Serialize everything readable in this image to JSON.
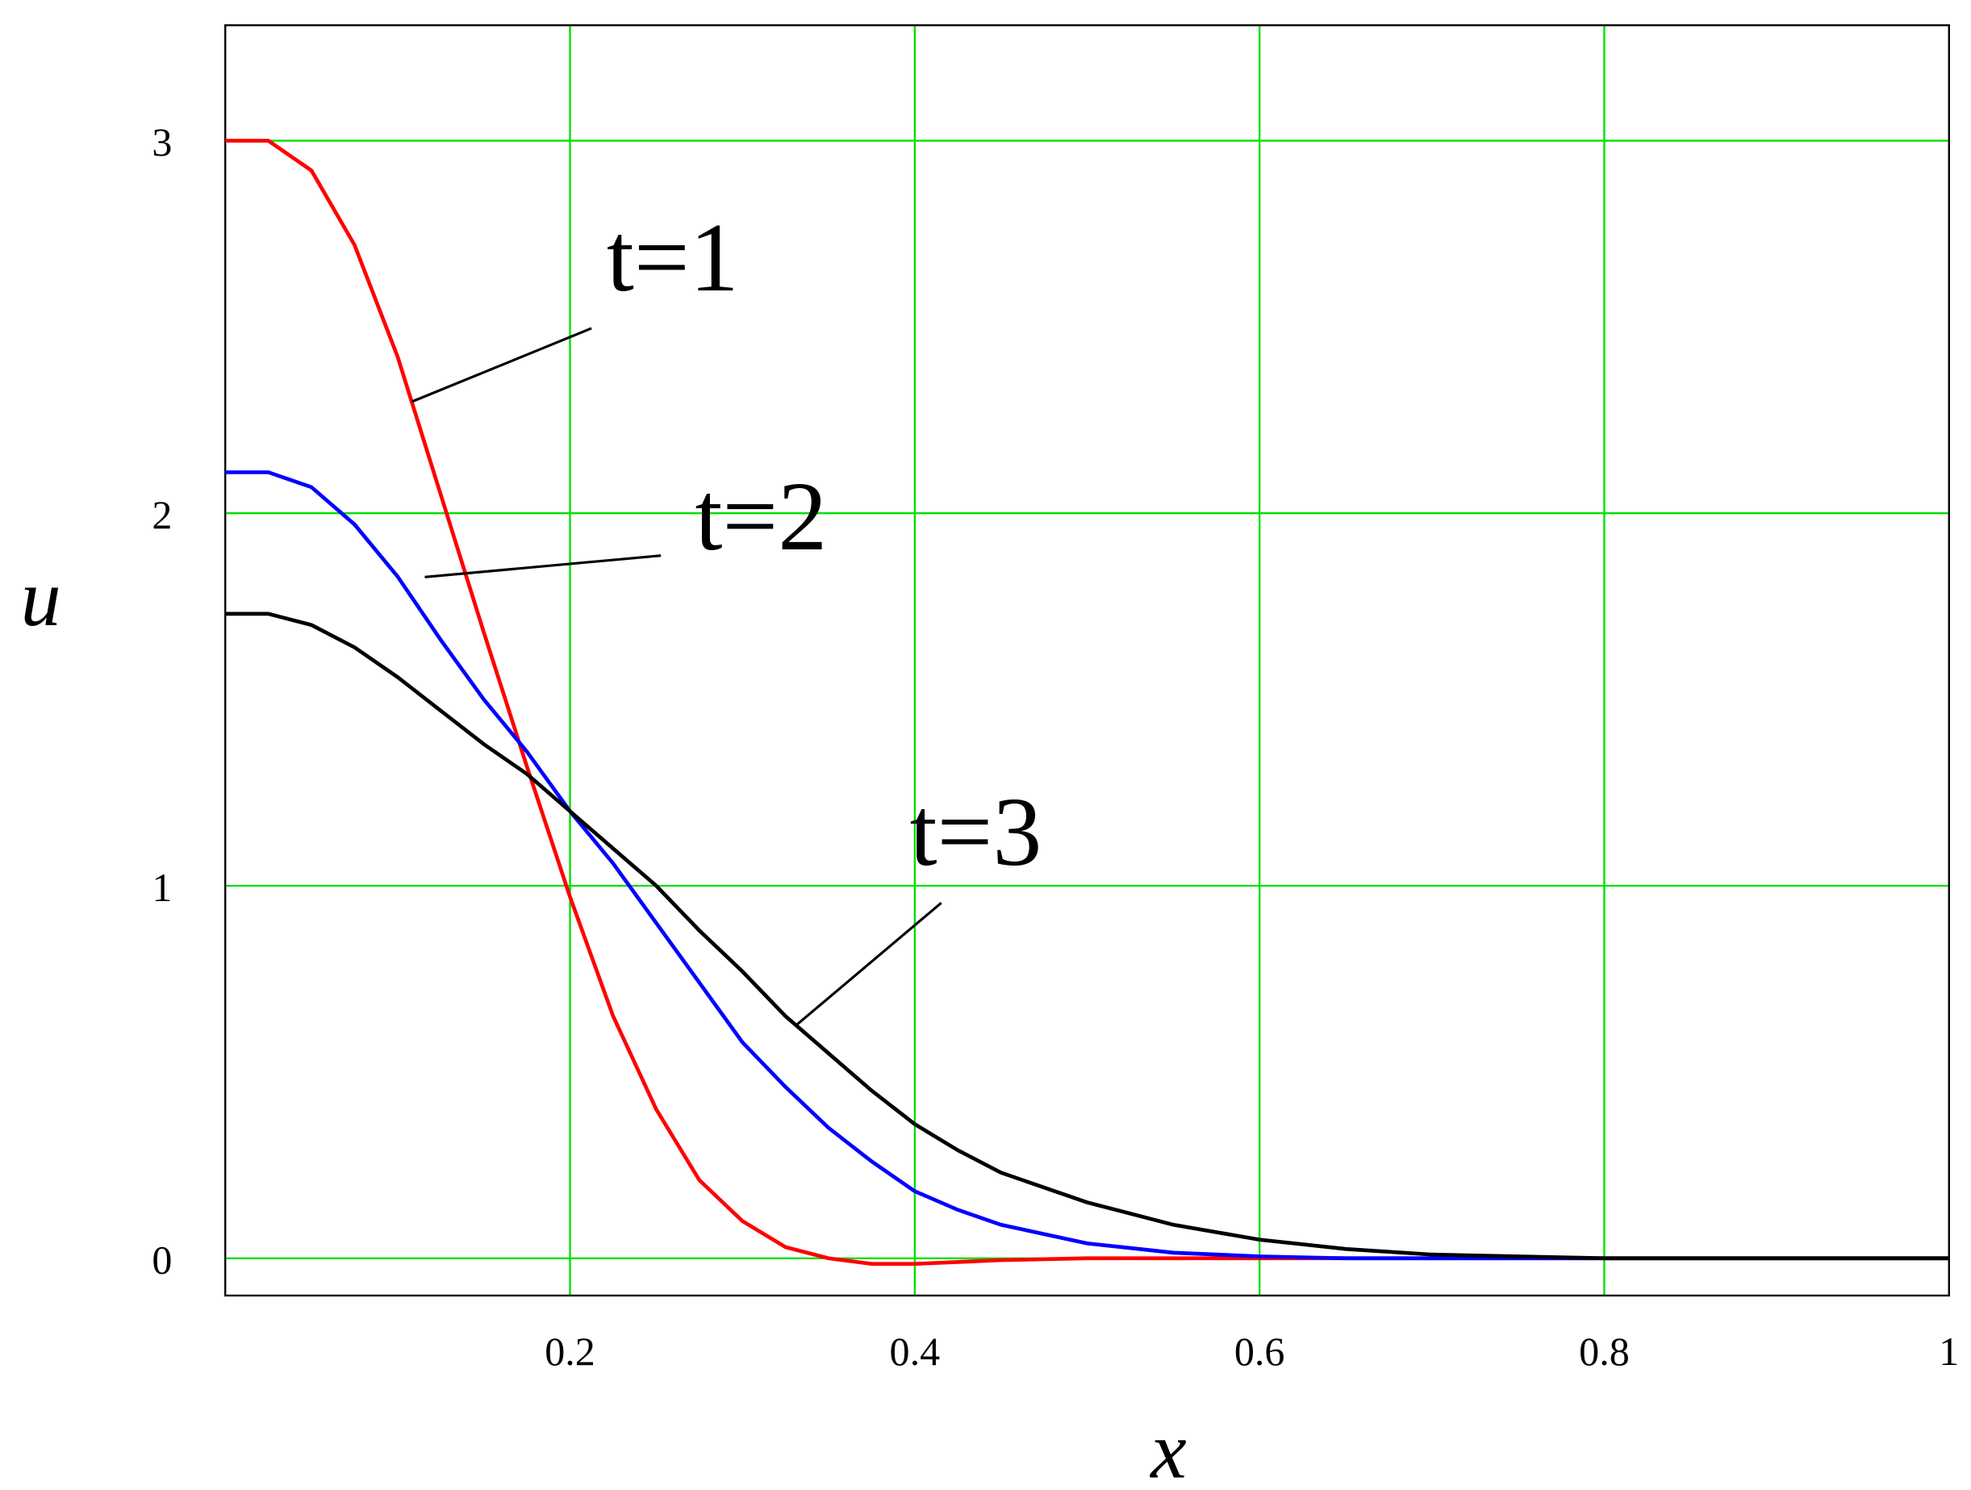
{
  "chart_data": {
    "type": "line",
    "x_label": "x",
    "y_label": "u",
    "x": [
      0,
      0.025,
      0.05,
      0.075,
      0.1,
      0.125,
      0.15,
      0.175,
      0.2,
      0.225,
      0.25,
      0.275,
      0.3,
      0.325,
      0.35,
      0.375,
      0.4,
      0.425,
      0.45,
      0.5,
      0.55,
      0.6,
      0.65,
      0.7,
      0.8,
      0.9,
      1
    ],
    "series": [
      {
        "name": "t=1",
        "color": "#ff0000",
        "values": [
          3.0,
          3.0,
          2.92,
          2.72,
          2.42,
          2.05,
          1.68,
          1.32,
          0.97,
          0.65,
          0.4,
          0.21,
          0.1,
          0.03,
          0.0,
          -0.015,
          -0.015,
          -0.01,
          -0.005,
          0,
          0,
          0,
          0,
          0,
          0,
          0,
          0
        ]
      },
      {
        "name": "t=2",
        "color": "#0000ff",
        "values": [
          2.11,
          2.11,
          2.07,
          1.97,
          1.83,
          1.66,
          1.5,
          1.36,
          1.2,
          1.06,
          0.9,
          0.74,
          0.58,
          0.46,
          0.35,
          0.26,
          0.18,
          0.13,
          0.09,
          0.04,
          0.015,
          0.005,
          0,
          0,
          0,
          0,
          0
        ]
      },
      {
        "name": "t=3",
        "color": "#000000",
        "values": [
          1.73,
          1.73,
          1.7,
          1.64,
          1.56,
          1.47,
          1.38,
          1.3,
          1.2,
          1.1,
          1.0,
          0.88,
          0.77,
          0.65,
          0.55,
          0.45,
          0.36,
          0.29,
          0.23,
          0.15,
          0.09,
          0.05,
          0.025,
          0.01,
          0,
          0,
          0
        ]
      }
    ],
    "xlim": [
      0,
      1
    ],
    "ylim": [
      -0.1,
      3.31
    ],
    "xticks": [
      0.2,
      0.4,
      0.6,
      0.8,
      1
    ],
    "yticks": [
      0,
      1,
      2,
      3
    ],
    "grid": true,
    "grid_color": "#00e000"
  }
}
